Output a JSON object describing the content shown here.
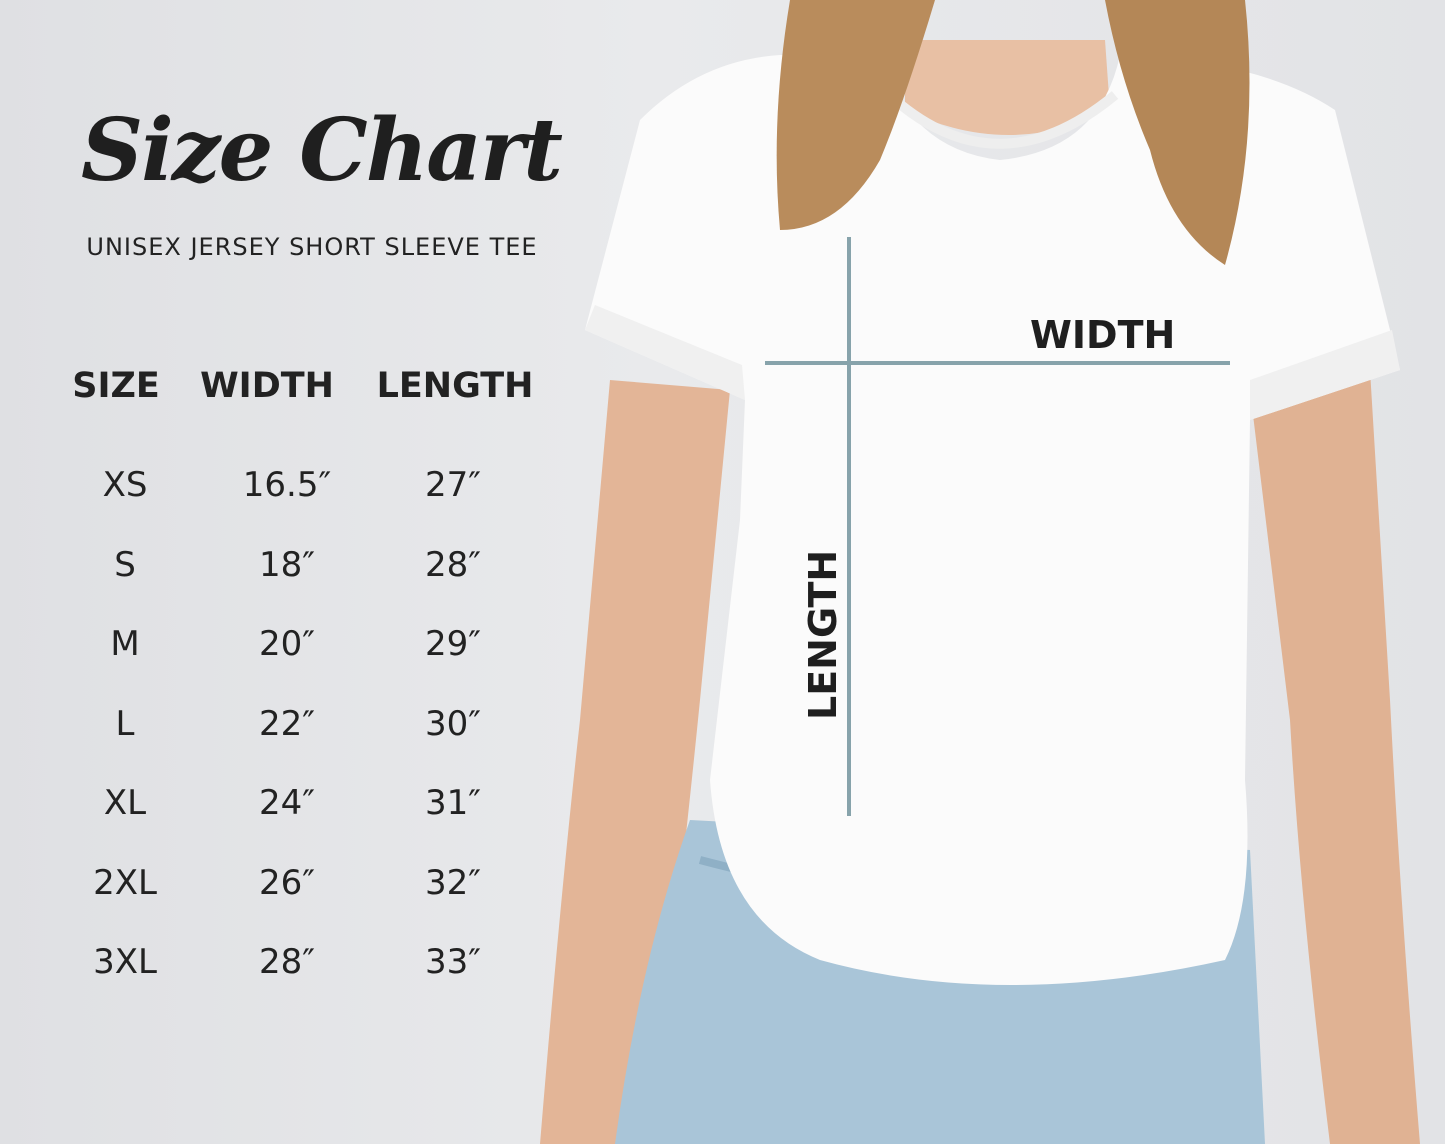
{
  "title": "Size Chart",
  "subtitle": "UNISEX JERSEY SHORT SLEEVE TEE",
  "colors": {
    "measure_line": "#87a3ab",
    "text": "#222222",
    "background": "#e4e5e8"
  },
  "diagram": {
    "width_label": "WIDTH",
    "length_label": "LENGTH"
  },
  "chart_data": {
    "type": "table",
    "columns": [
      "SIZE",
      "WIDTH",
      "LENGTH"
    ],
    "rows": [
      [
        "XS",
        "16.5″",
        "27″"
      ],
      [
        "S",
        "18″",
        "28″"
      ],
      [
        "M",
        "20″",
        "29″"
      ],
      [
        "L",
        "22″",
        "30″"
      ],
      [
        "XL",
        "24″",
        "31″"
      ],
      [
        "2XL",
        "26″",
        "32″"
      ],
      [
        "3XL",
        "28″",
        "33″"
      ]
    ]
  }
}
